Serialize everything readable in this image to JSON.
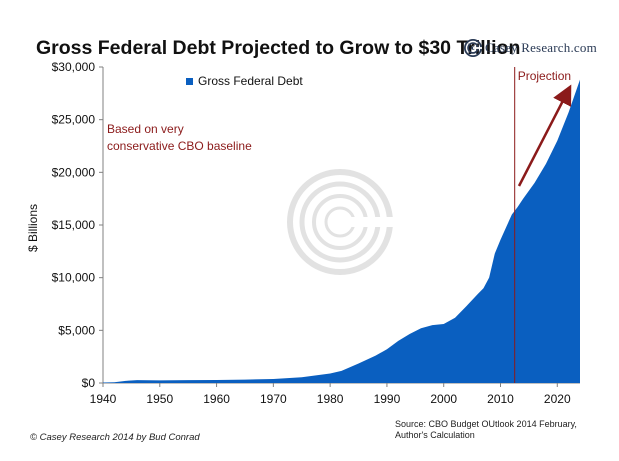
{
  "title": "Gross Federal Debt Projected to Grow to $30 Trillion",
  "logo": {
    "text": "Casey Research.com",
    "icon": "casey-target-logo-icon"
  },
  "source_text": "Source: CBO Budget OUtlook 2014 February, Author's Calculation",
  "copyright": "© Casey Research 2014 by Bud Conrad",
  "chart_data": {
    "type": "area",
    "title": "Gross Federal Debt Projected to Grow to $30 Trillion",
    "xlabel": "",
    "ylabel": "$ Billions",
    "xlim": [
      1940,
      2024
    ],
    "ylim": [
      0,
      30000
    ],
    "x_ticks": [
      1940,
      1950,
      1960,
      1970,
      1980,
      1990,
      2000,
      2010,
      2020
    ],
    "y_ticks": [
      0,
      5000,
      10000,
      15000,
      20000,
      25000,
      30000
    ],
    "y_tick_labels": [
      "$0",
      "$5,000",
      "$10,000",
      "$15,000",
      "$20,000",
      "$25,000",
      "$30,000"
    ],
    "grid": false,
    "legend_position": "top-left",
    "series": [
      {
        "name": "Gross Federal Debt",
        "color": "#0a5fc0",
        "x": [
          1940,
          1942,
          1944,
          1946,
          1950,
          1955,
          1960,
          1965,
          1970,
          1975,
          1980,
          1982,
          1985,
          1988,
          1990,
          1992,
          1994,
          1996,
          1998,
          2000,
          2002,
          2004,
          2006,
          2007,
          2008,
          2009,
          2010,
          2011,
          2012,
          2013,
          2014,
          2016,
          2018,
          2020,
          2022,
          2024
        ],
        "values": [
          50,
          70,
          200,
          270,
          250,
          270,
          290,
          320,
          380,
          540,
          900,
          1150,
          1850,
          2600,
          3200,
          4000,
          4650,
          5200,
          5500,
          5600,
          6200,
          7300,
          8450,
          9000,
          10000,
          12300,
          13600,
          14800,
          16000,
          16700,
          17500,
          19000,
          20800,
          23000,
          25700,
          28800
        ]
      }
    ],
    "annotations": [
      {
        "text": "Based on very conservative CBO baseline",
        "color": "#8b1a1a"
      },
      {
        "text": "Projection",
        "color": "#8b1a1a",
        "divider_x": 2012.5
      }
    ],
    "accent_color": "#8b1a1a"
  }
}
